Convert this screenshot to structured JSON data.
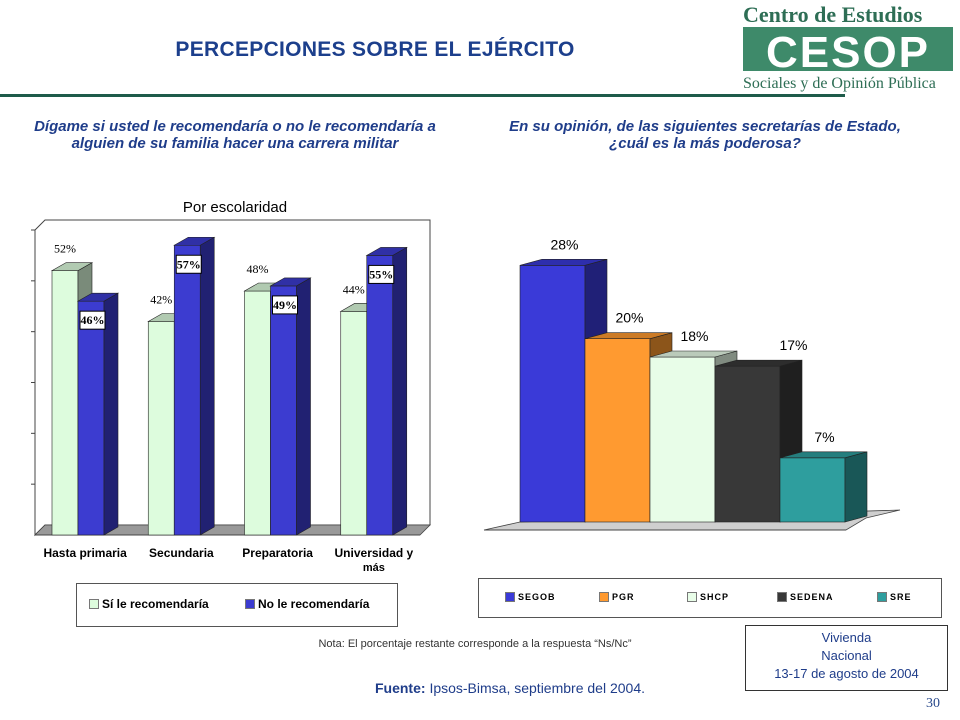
{
  "title": "PERCEPCIONES SOBRE EL EJÉRCITO",
  "logo": {
    "line1": "Centro de Estudios",
    "mark": "CESOP",
    "line2": "Sociales y de Opinión Pública"
  },
  "note": "Nota: El porcentaje restante corresponde a la respuesta “Ns/Nc”",
  "source": {
    "label": "Fuente:",
    "text": "Ipsos-Bimsa, septiembre del 2004."
  },
  "infobox": {
    "line1": "Vivienda",
    "line2": "Nacional",
    "line3": "13-17 de agosto de 2004"
  },
  "page_number": "30",
  "colors": {
    "title": "#1c3f8c",
    "si": "#ddfcdd",
    "no": "#3c3cd0",
    "segob": "#3a3ad8",
    "pgr": "#ff9a30",
    "shcp": "#e8fde8",
    "sedena": "#383838",
    "sre": "#2e9e9e"
  },
  "chart_data": [
    {
      "type": "bar",
      "title": "Dígame si usted le recomendaría o no le recomendaría a alguien de su familia hacer una carrera militar",
      "subtitle": "Por escolaridad",
      "categories": [
        "Hasta primaria",
        "Secundaria",
        "Preparatoria",
        "Universidad y más"
      ],
      "series": [
        {
          "name": "Sí le recomendaría",
          "values": [
            52,
            42,
            48,
            44
          ],
          "labels": [
            "52%",
            "42%",
            "48%",
            "44%"
          ]
        },
        {
          "name": "No le recomendaría",
          "values": [
            46,
            57,
            49,
            55
          ],
          "labels": [
            "46%",
            "57%",
            "49%",
            "55%"
          ]
        }
      ],
      "ylim": [
        0,
        60
      ],
      "grid": false,
      "legend": "bottom"
    },
    {
      "type": "bar",
      "title": "En su opinión, de las siguientes secretarías de Estado, ¿cuál es la más poderosa?",
      "categories": [
        "SEGOB",
        "PGR",
        "SHCP",
        "SEDENA",
        "SRE"
      ],
      "values": [
        28,
        20,
        18,
        17,
        7
      ],
      "labels": [
        "28%",
        "20%",
        "18%",
        "17%",
        "7%"
      ],
      "ylim": [
        0,
        30
      ],
      "grid": false,
      "legend": "bottom"
    }
  ]
}
